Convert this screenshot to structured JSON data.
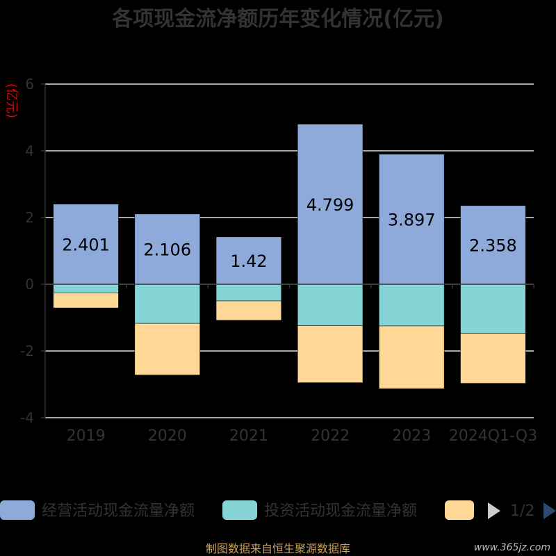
{
  "chart_data": {
    "type": "bar",
    "stacked": true,
    "title": "各项现金流净额历年变化情况(亿元)",
    "ylabel": "(亿元)",
    "ylim": [
      -4,
      6
    ],
    "yticks": [
      -4,
      -2,
      0,
      2,
      4,
      6
    ],
    "categories": [
      "2019",
      "2020",
      "2021",
      "2022",
      "2023",
      "2024Q1-Q3"
    ],
    "series": [
      {
        "name": "经营活动现金流量净额",
        "color": "#8eaadb",
        "values": [
          2.401,
          2.106,
          1.42,
          4.799,
          3.897,
          2.358
        ],
        "labels": [
          "2.401",
          "2.106",
          "1.42",
          "4.799",
          "3.897",
          "2.358"
        ]
      },
      {
        "name": "投资活动现金流量净额",
        "color": "#86d5d6",
        "values": [
          -0.26,
          -1.17,
          -0.5,
          -1.24,
          -1.25,
          -1.47
        ]
      },
      {
        "name": "",
        "color": "#ffd898",
        "values": [
          -0.45,
          -1.55,
          -0.58,
          -1.71,
          -1.88,
          -1.5
        ]
      }
    ],
    "legend": {
      "position": "bottom",
      "page": "1/2"
    },
    "grid": true
  },
  "source": "制图数据来自恒生聚源数据库",
  "watermark": "www.365jz.com"
}
